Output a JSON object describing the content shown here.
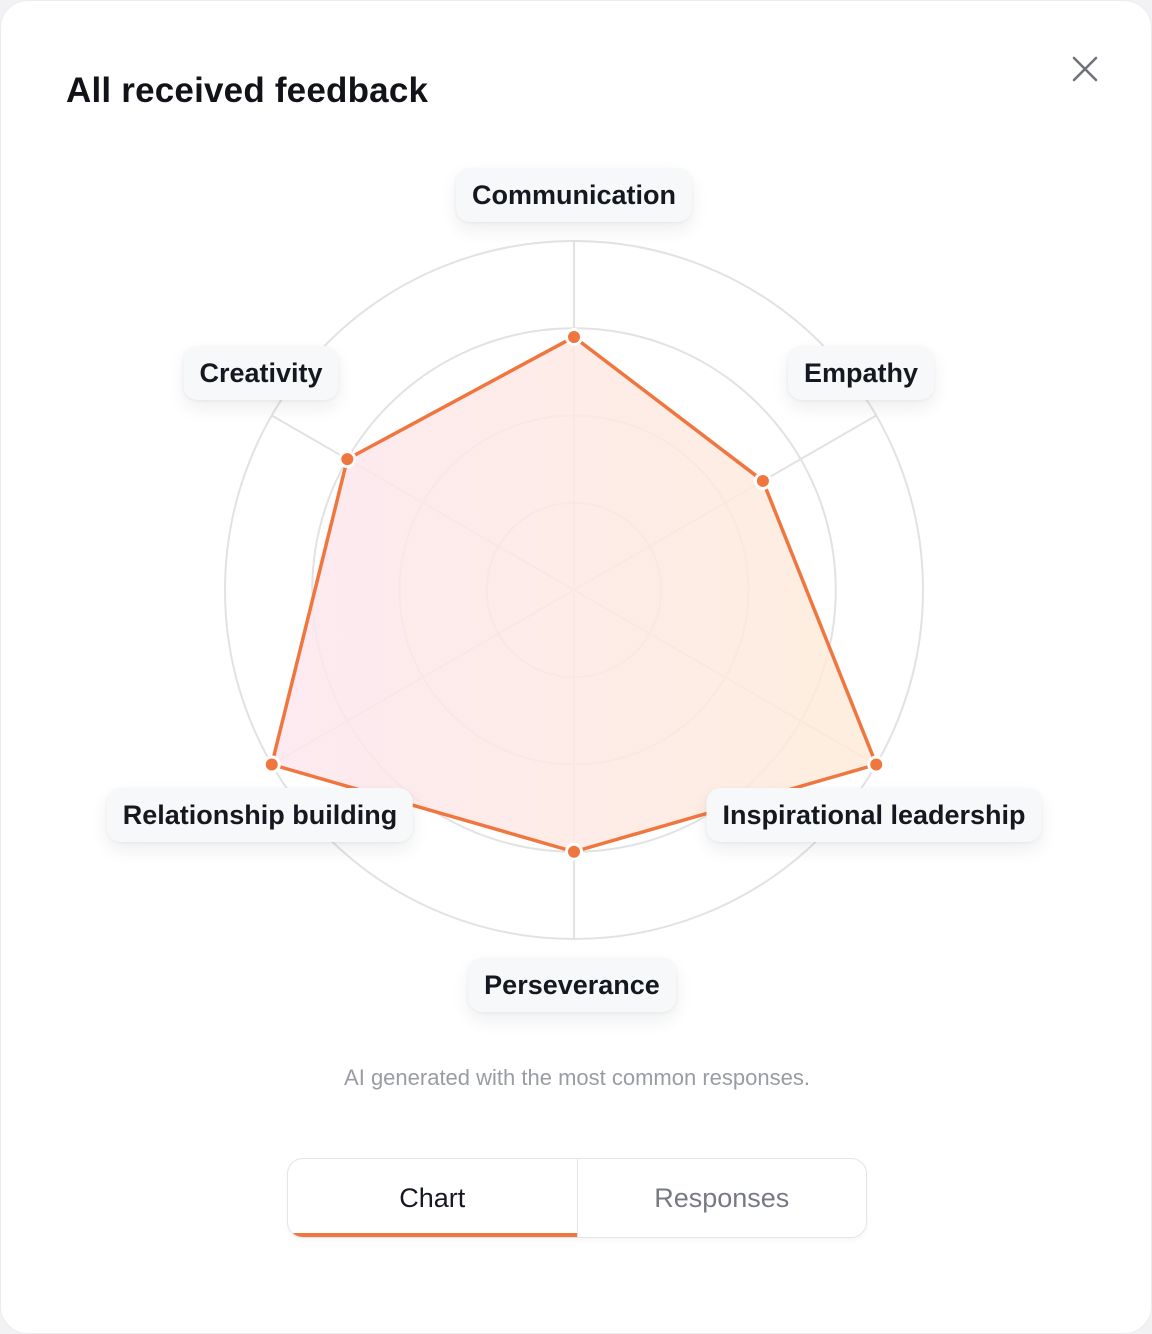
{
  "dialog": {
    "title": "All received feedback",
    "close_icon": "close-icon"
  },
  "chart_data": {
    "type": "radar",
    "axes": [
      "Communication",
      "Empathy",
      "Inspirational leadership",
      "Perseverance",
      "Relationship building",
      "Creativity"
    ],
    "values": [
      2.9,
      2.5,
      4.0,
      3.0,
      4.0,
      3.0
    ],
    "rlim": [
      0,
      4
    ],
    "rings": 4,
    "series_color": "#f0763f",
    "fill_from": "#fde6ee",
    "fill_to": "#fdebd9"
  },
  "caption": "AI generated with the most common responses.",
  "tabs": {
    "chart_label": "Chart",
    "responses_label": "Responses",
    "active": "Chart"
  },
  "colors": {
    "accent": "#f0763f",
    "grid": "#e2e2e4",
    "title": "#111318"
  }
}
